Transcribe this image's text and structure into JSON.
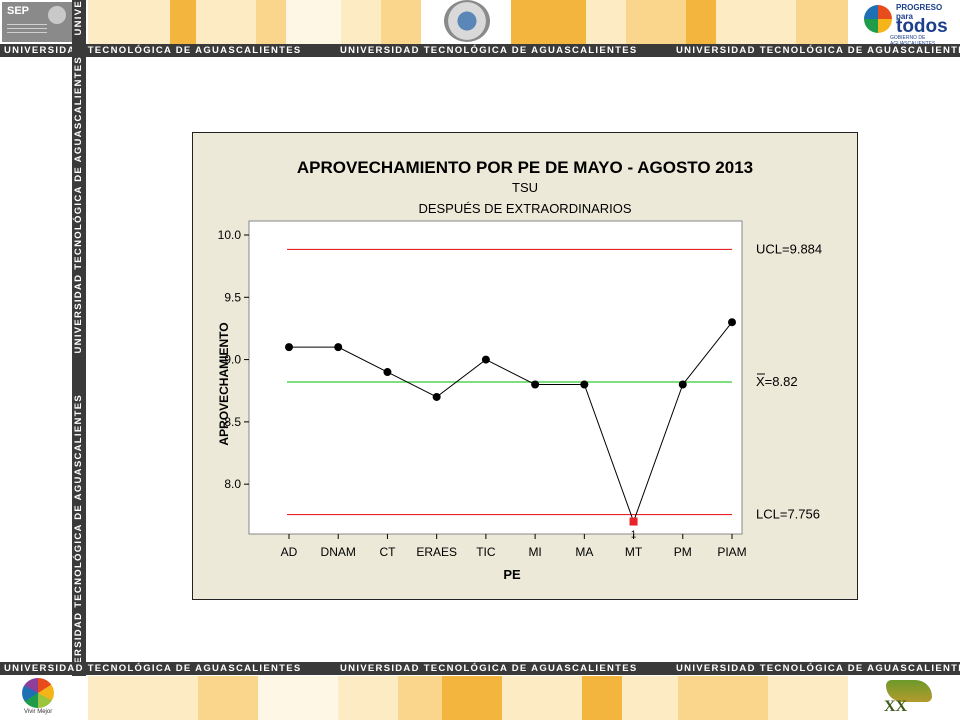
{
  "header": {
    "sep_logo_text": "SEP",
    "sep_logo_subtext": "SECRETARÍA DE EDUCACIÓN PÚBLICA",
    "progreso_logo_small": "PROGRESO para",
    "progreso_logo_big": "todos",
    "progreso_logo_sub": "GOBIERNO DE AGUASCALIENTES",
    "band_text": "UNIVERSIDAD TECNOLÓGICA DE AGUASCALIENTES",
    "band_repeat_text": "UNIVERSIDAD TECNOLÓGICA DE AGUASCALIENTES",
    "band_fragment": "UNIVE"
  },
  "footer": {
    "vivir_logo_text": "Vivir Mejor",
    "xx_logo_text": "XX"
  },
  "colors": {
    "band": "#3a3a3a",
    "chart_bg": "#ece9d8",
    "limit_line": "#e8232a",
    "center_line": "#33cc33",
    "stripe_light": "#fdebc4",
    "stripe_mid": "#f9d68b",
    "stripe_dark": "#f4b53f"
  },
  "chart_data": {
    "type": "line",
    "title": "APROVECHAMIENTO POR PE DE MAYO - AGOSTO 2013",
    "subtitle_1": "TSU",
    "subtitle_2": "DESPUÉS DE EXTRAORDINARIOS",
    "xlabel": "PE",
    "ylabel": "APROVECHAMIENTO",
    "categories": [
      "AD",
      "DNAM",
      "CT",
      "ERAES",
      "TIC",
      "MI",
      "MA",
      "MT",
      "PM",
      "PIAM"
    ],
    "values": [
      9.1,
      9.1,
      8.9,
      8.7,
      9.0,
      8.8,
      8.8,
      7.7,
      8.8,
      9.3
    ],
    "out_of_control_index": 7,
    "out_of_control_marker_label": "1",
    "ylim": [
      7.6,
      10.0
    ],
    "yticks": [
      8.0,
      8.5,
      9.0,
      9.5,
      10.0
    ],
    "ytick_labels": [
      "8.0",
      "8.5",
      "9.0",
      "9.5",
      "10.0"
    ],
    "control_limits": {
      "ucl": 9.884,
      "center": 8.82,
      "lcl": 7.756,
      "ucl_label": "UCL=9.884",
      "center_label": "X=8.82",
      "lcl_label": "LCL=7.756"
    },
    "grid": false,
    "legend": "none"
  }
}
